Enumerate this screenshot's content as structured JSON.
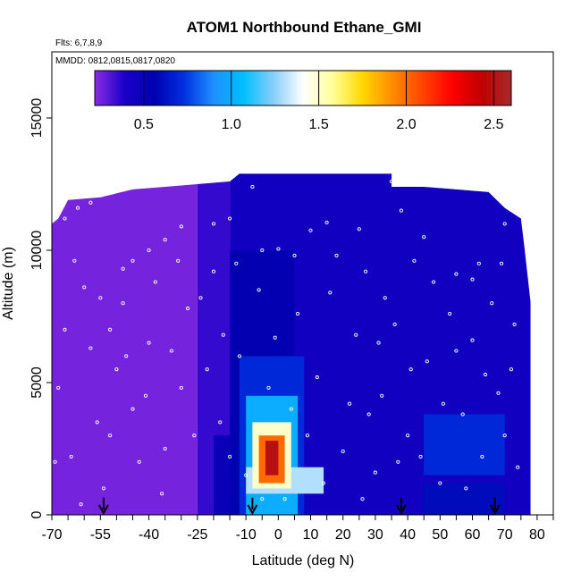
{
  "chart_data": {
    "type": "heatmap",
    "title": "ATOM1 Northbound Ethane_GMI",
    "flights_text": "Flts: 6,7,8,9",
    "dates_text": "MMDD: 0812,0815,0817,0820",
    "xlabel": "Latitude (deg N)",
    "ylabel": "Altitude (m)",
    "xlim": [
      -70,
      85
    ],
    "ylim": [
      0,
      17500
    ],
    "x_ticks": [
      -70,
      -55,
      -40,
      -25,
      -10,
      0,
      10,
      20,
      30,
      40,
      50,
      60,
      70,
      80
    ],
    "x_tick_labels": [
      "-70",
      "-55",
      "-40",
      "-25",
      "-10",
      "0",
      "10",
      "20",
      "30",
      "40",
      "50",
      "60",
      "70",
      "80"
    ],
    "x_minor_step": 5,
    "y_ticks": [
      0,
      5000,
      10000,
      15000
    ],
    "y_tick_labels": [
      "0",
      "5000",
      "10000",
      "15000"
    ],
    "colorbar": {
      "range": [
        0.22,
        2.6
      ],
      "ticks": [
        0.5,
        1.0,
        1.5,
        2.0,
        2.5
      ],
      "tick_labels": [
        "0.5",
        "1.0",
        "1.5",
        "2.0",
        "2.5"
      ],
      "colors": [
        "#8a2be2",
        "#1a00c8",
        "#0000b0",
        "#0030e0",
        "#1e90ff",
        "#00bfff",
        "#87cefa",
        "#ffffff",
        "#ffff99",
        "#ffd700",
        "#ff8c00",
        "#ff4500",
        "#ff0000",
        "#c00000",
        "#a52a2a"
      ]
    },
    "colorbar_ticks": [
      0.5,
      1.0,
      1.5,
      2.0,
      2.5
    ],
    "top_altitude_profile": [
      [
        -70,
        11000
      ],
      [
        -68,
        11200
      ],
      [
        -65,
        11900
      ],
      [
        -55,
        12000
      ],
      [
        -45,
        12300
      ],
      [
        -35,
        12400
      ],
      [
        -25,
        12500
      ],
      [
        -15,
        12600
      ],
      [
        -12,
        12900
      ],
      [
        35,
        12900
      ],
      [
        38,
        12600
      ],
      [
        45,
        12400
      ],
      [
        55,
        12300
      ],
      [
        65,
        12200
      ],
      [
        70,
        11600
      ],
      [
        75,
        11200
      ],
      [
        76,
        10200
      ],
      [
        78,
        8000
      ],
      [
        78,
        0
      ]
    ],
    "field_regions": [
      {
        "lat": [
          -70,
          -25
        ],
        "alt": [
          0,
          12500
        ],
        "value": 0.25
      },
      {
        "lat": [
          -25,
          -15
        ],
        "alt": [
          0,
          12600
        ],
        "value": 0.35
      },
      {
        "lat": [
          -15,
          35
        ],
        "alt": [
          0,
          12900
        ],
        "value": 0.45
      },
      {
        "lat": [
          35,
          78
        ],
        "alt": [
          0,
          12400
        ],
        "value": 0.45
      },
      {
        "lat": [
          -20,
          -12
        ],
        "alt": [
          0,
          3000
        ],
        "value": 0.5
      },
      {
        "lat": [
          -15,
          5
        ],
        "alt": [
          0,
          10000
        ],
        "value": 0.55
      },
      {
        "lat": [
          -12,
          8
        ],
        "alt": [
          0,
          6000
        ],
        "value": 0.7
      },
      {
        "lat": [
          -10,
          6
        ],
        "alt": [
          0,
          4500
        ],
        "value": 1.0
      },
      {
        "lat": [
          -10,
          14
        ],
        "alt": [
          800,
          1800
        ],
        "value": 1.3
      },
      {
        "lat": [
          -8,
          4
        ],
        "alt": [
          1000,
          3500
        ],
        "value": 1.5
      },
      {
        "lat": [
          -6,
          2
        ],
        "alt": [
          1200,
          3000
        ],
        "value": 2.0
      },
      {
        "lat": [
          -4,
          0
        ],
        "alt": [
          1500,
          2800
        ],
        "value": 2.5
      },
      {
        "lat": [
          45,
          70
        ],
        "alt": [
          1500,
          3800
        ],
        "value": 0.7
      },
      {
        "lat": [
          45,
          70
        ],
        "alt": [
          0,
          1200
        ],
        "value": 0.6
      }
    ],
    "arrow_markers_lat": [
      -54,
      -8,
      38,
      67
    ],
    "flight_track_points": [
      [
        -66,
        11200
      ],
      [
        -62,
        11600
      ],
      [
        -58,
        11800
      ],
      [
        -48,
        9300
      ],
      [
        -45,
        9600
      ],
      [
        -40,
        10000
      ],
      [
        -35,
        10400
      ],
      [
        -30,
        10900
      ],
      [
        -20,
        11000
      ],
      [
        -15,
        11200
      ],
      [
        -8,
        12400
      ],
      [
        -5,
        10000
      ],
      [
        0,
        10050
      ],
      [
        10,
        10750
      ],
      [
        15,
        11050
      ],
      [
        25,
        10800
      ],
      [
        35,
        12600
      ],
      [
        38,
        11500
      ],
      [
        45,
        10500
      ],
      [
        55,
        9100
      ],
      [
        60,
        8900
      ],
      [
        70,
        11000
      ],
      [
        75,
        11300
      ],
      [
        76,
        10900
      ],
      [
        -60,
        8600
      ],
      [
        -55,
        8200
      ],
      [
        -52,
        7000
      ],
      [
        -50,
        5500
      ],
      [
        -45,
        4000
      ],
      [
        -40,
        6500
      ],
      [
        -35,
        2500
      ],
      [
        -30,
        4800
      ],
      [
        -28,
        7800
      ],
      [
        -22,
        5500
      ],
      [
        -18,
        3500
      ],
      [
        -15,
        2200
      ],
      [
        -12,
        6000
      ],
      [
        -10,
        1500
      ],
      [
        -6,
        8500
      ],
      [
        -3,
        4800
      ],
      [
        2,
        600
      ],
      [
        6,
        7600
      ],
      [
        9,
        3000
      ],
      [
        12,
        5200
      ],
      [
        16,
        8400
      ],
      [
        20,
        2400
      ],
      [
        24,
        6800
      ],
      [
        27,
        9200
      ],
      [
        30,
        1600
      ],
      [
        32,
        4500
      ],
      [
        36,
        7200
      ],
      [
        40,
        3000
      ],
      [
        42,
        9600
      ],
      [
        46,
        5800
      ],
      [
        50,
        1200
      ],
      [
        53,
        7600
      ],
      [
        57,
        3800
      ],
      [
        60,
        6600
      ],
      [
        63,
        2200
      ],
      [
        66,
        8000
      ],
      [
        68,
        4600
      ],
      [
        72,
        5500
      ],
      [
        74,
        1800
      ],
      [
        -68,
        4800
      ],
      [
        -66,
        7000
      ],
      [
        -64,
        2200
      ],
      [
        -63,
        9600
      ],
      [
        -58,
        6300
      ],
      [
        -56,
        3500
      ],
      [
        -54,
        1000
      ],
      [
        -48,
        8000
      ],
      [
        -43,
        2000
      ],
      [
        -38,
        8800
      ],
      [
        -33,
        6200
      ],
      [
        -26,
        3000
      ],
      [
        -20,
        9200
      ],
      [
        -5,
        600
      ],
      [
        5,
        9800
      ],
      [
        18,
        9800
      ],
      [
        28,
        3800
      ],
      [
        33,
        8200
      ],
      [
        44,
        2200
      ],
      [
        48,
        8800
      ],
      [
        58,
        1000
      ],
      [
        62,
        9500
      ],
      [
        70,
        3000
      ],
      [
        -69,
        2000
      ],
      [
        -61,
        400
      ],
      [
        -52,
        3000
      ],
      [
        -47,
        6000
      ],
      [
        -41,
        4500
      ],
      [
        -36,
        800
      ],
      [
        -31,
        9600
      ],
      [
        -24,
        8200
      ],
      [
        -17,
        6800
      ],
      [
        -13,
        9500
      ],
      [
        -1,
        6700
      ],
      [
        4,
        4000
      ],
      [
        14,
        1200
      ],
      [
        22,
        4200
      ],
      [
        26,
        600
      ],
      [
        31,
        6500
      ],
      [
        37,
        2000
      ],
      [
        41,
        5500
      ],
      [
        51,
        4200
      ],
      [
        55,
        6200
      ],
      [
        64,
        5300
      ],
      [
        69,
        9500
      ],
      [
        73,
        7200
      ]
    ]
  }
}
